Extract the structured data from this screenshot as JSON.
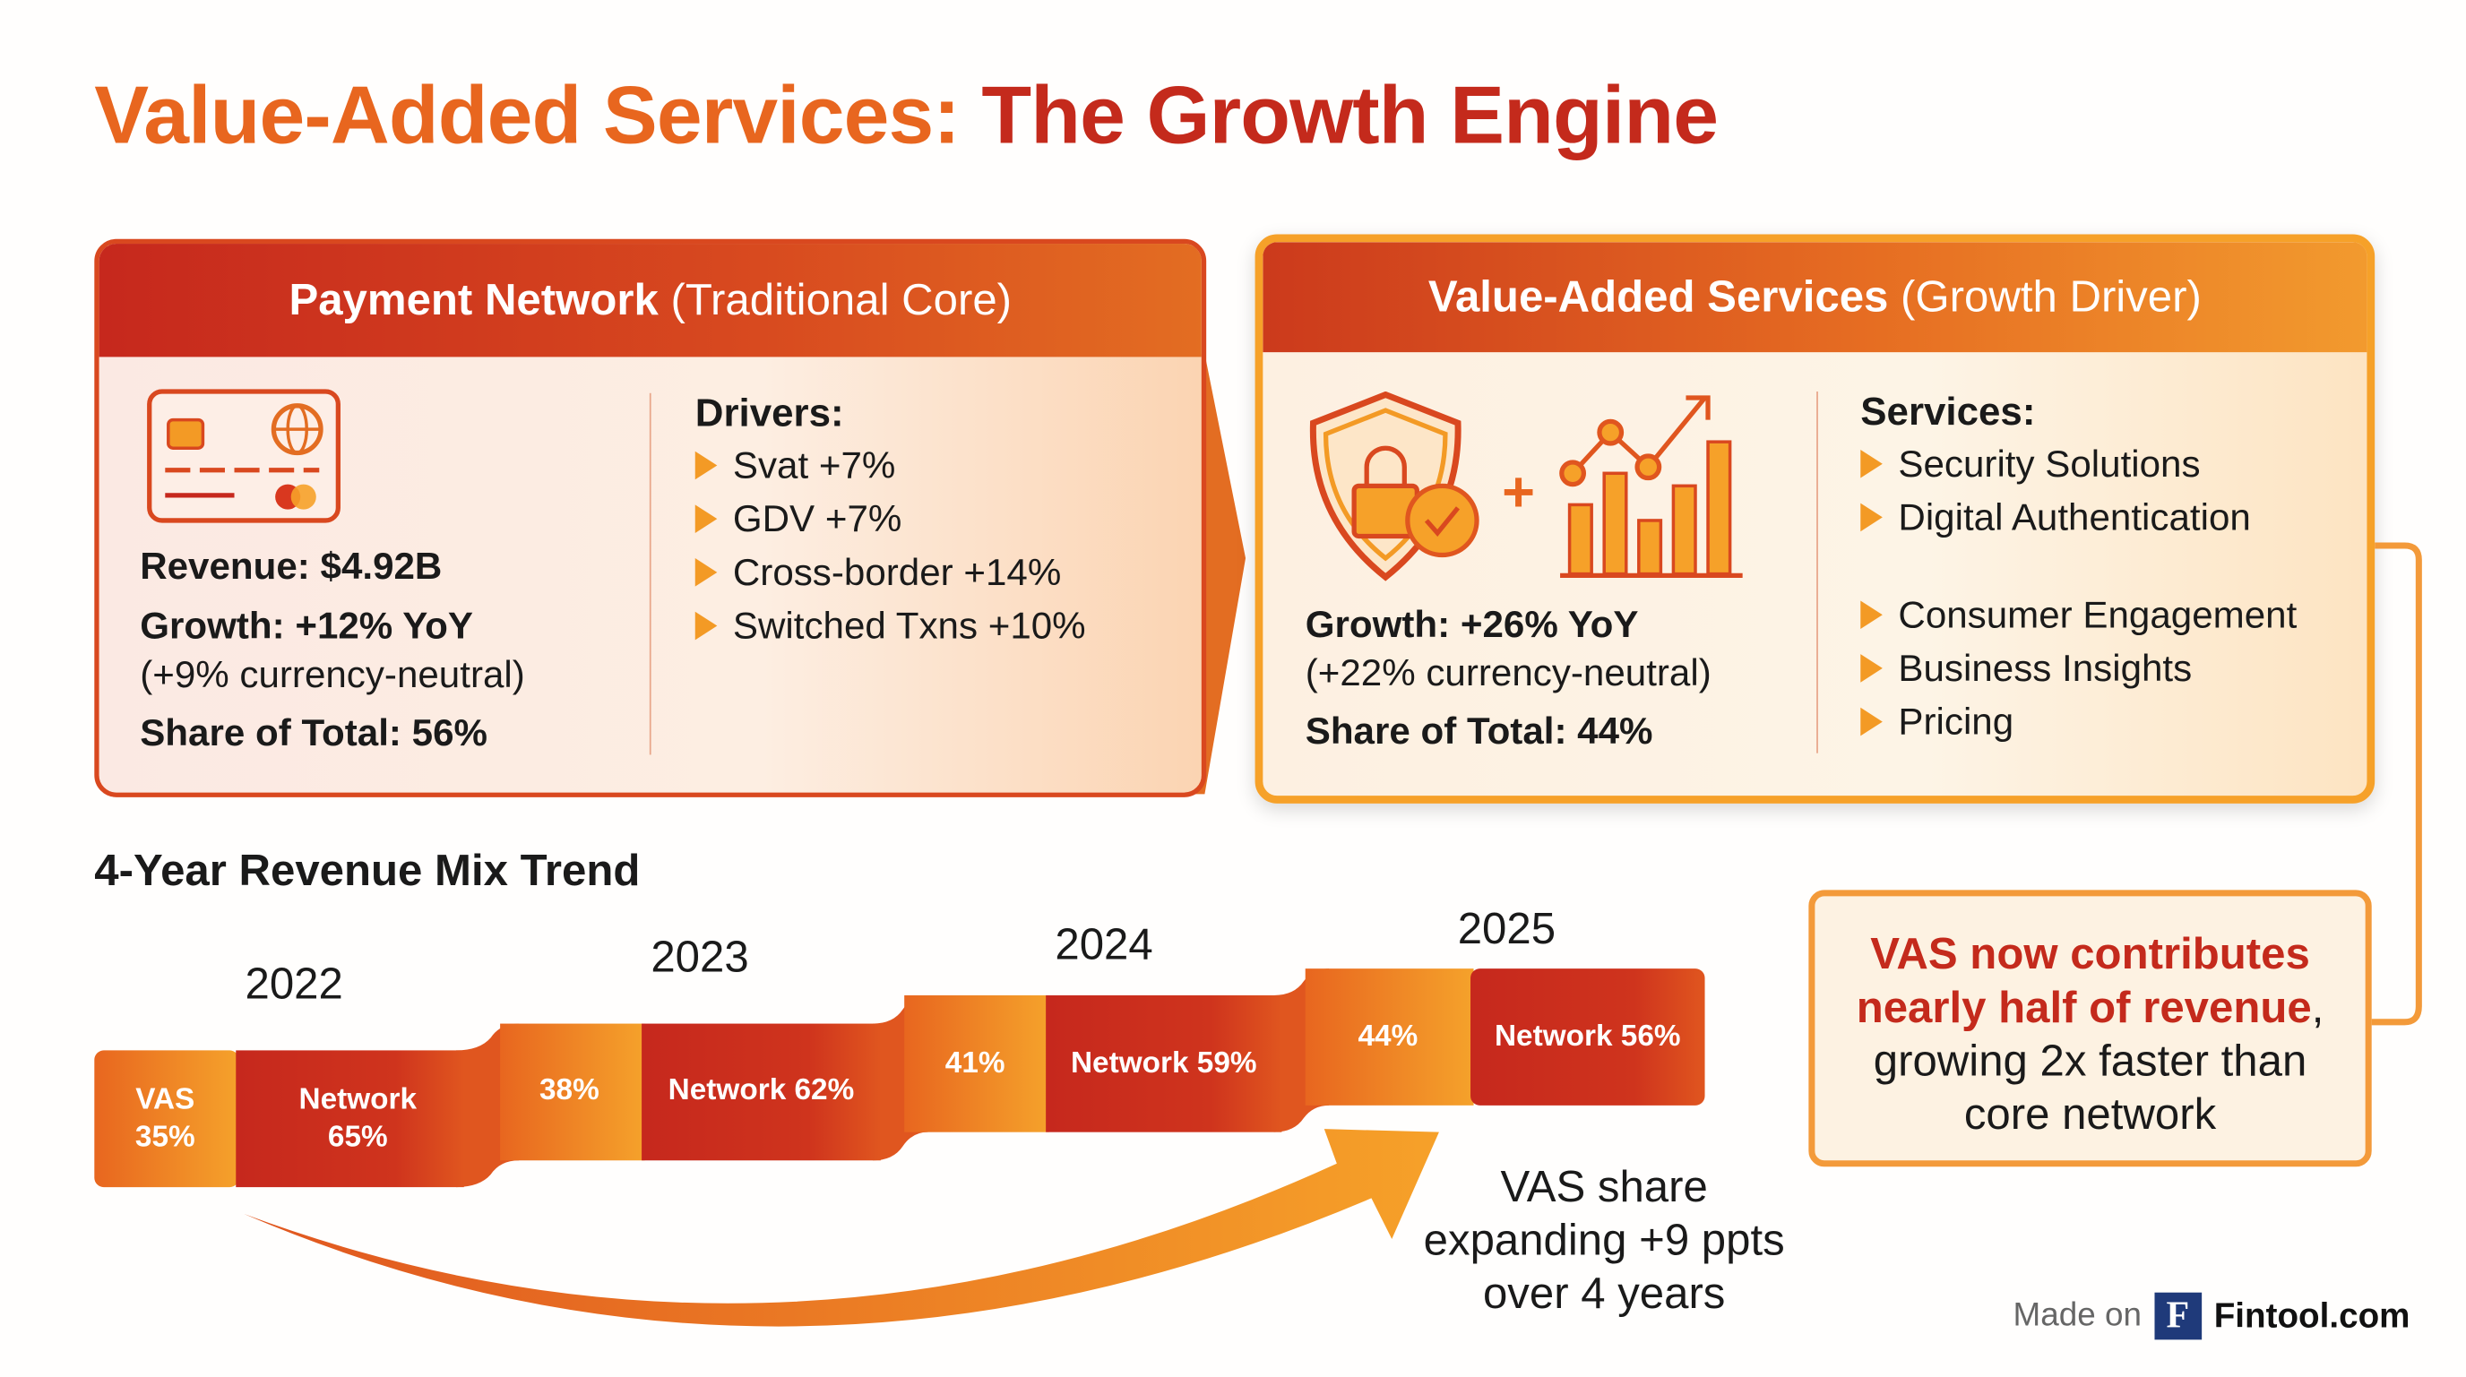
{
  "title": {
    "part1": "Value-Added Services:",
    "part2": "The Growth Engine"
  },
  "payment_network": {
    "header_bold": "Payment Network",
    "header_sub": "(Traditional Core)",
    "revenue": "Revenue: $4.92B",
    "growth": "Growth: +12% YoY",
    "currency_neutral": "(+9% currency-neutral)",
    "share": "Share of Total: 56%",
    "drivers_title": "Drivers:",
    "drivers": [
      "Svat +7%",
      "GDV +7%",
      "Cross-border +14%",
      "Switched Txns +10%"
    ]
  },
  "vas": {
    "header_bold": "Value-Added Services",
    "header_sub": "(Growth Driver)",
    "growth": "Growth: +26% YoY",
    "currency_neutral": "(+22% currency-neutral)",
    "share": "Share of Total: 44%",
    "services_title": "Services:",
    "services": [
      "Security Solutions",
      "Digital Authentication",
      "Consumer Engagement",
      "Business Insights",
      "Pricing"
    ]
  },
  "trend": {
    "title": "4-Year Revenue Mix Trend",
    "years": [
      {
        "year": "2022",
        "vas_label": "VAS 35%",
        "vas_line1": "VAS",
        "vas_line2": "35%",
        "net_line1": "Network",
        "net_line2": "65%",
        "vas": 35,
        "network": 65
      },
      {
        "year": "2023",
        "vas_label": "38%",
        "net_label": "Network 62%",
        "vas": 38,
        "network": 62
      },
      {
        "year": "2024",
        "vas_label": "41%",
        "net_label": "Network 59%",
        "vas": 41,
        "network": 59
      },
      {
        "year": "2025",
        "vas_label": "44%",
        "net_label": "Network 56%",
        "vas": 44,
        "network": 56
      }
    ],
    "note": [
      "VAS share",
      "expanding +9 ppts",
      "over 4 years"
    ]
  },
  "callout": {
    "highlight1": "VAS now contributes",
    "highlight2": "nearly half of revenue",
    "rest1": ",",
    "rest2": "growing 2x faster than",
    "rest3": "core network"
  },
  "footer": {
    "made_on": "Made on",
    "logo": "F",
    "brand": "Fintool.com"
  },
  "colors": {
    "orange": "#e8661f",
    "red": "#c42a1c",
    "amber": "#f39a25"
  }
}
